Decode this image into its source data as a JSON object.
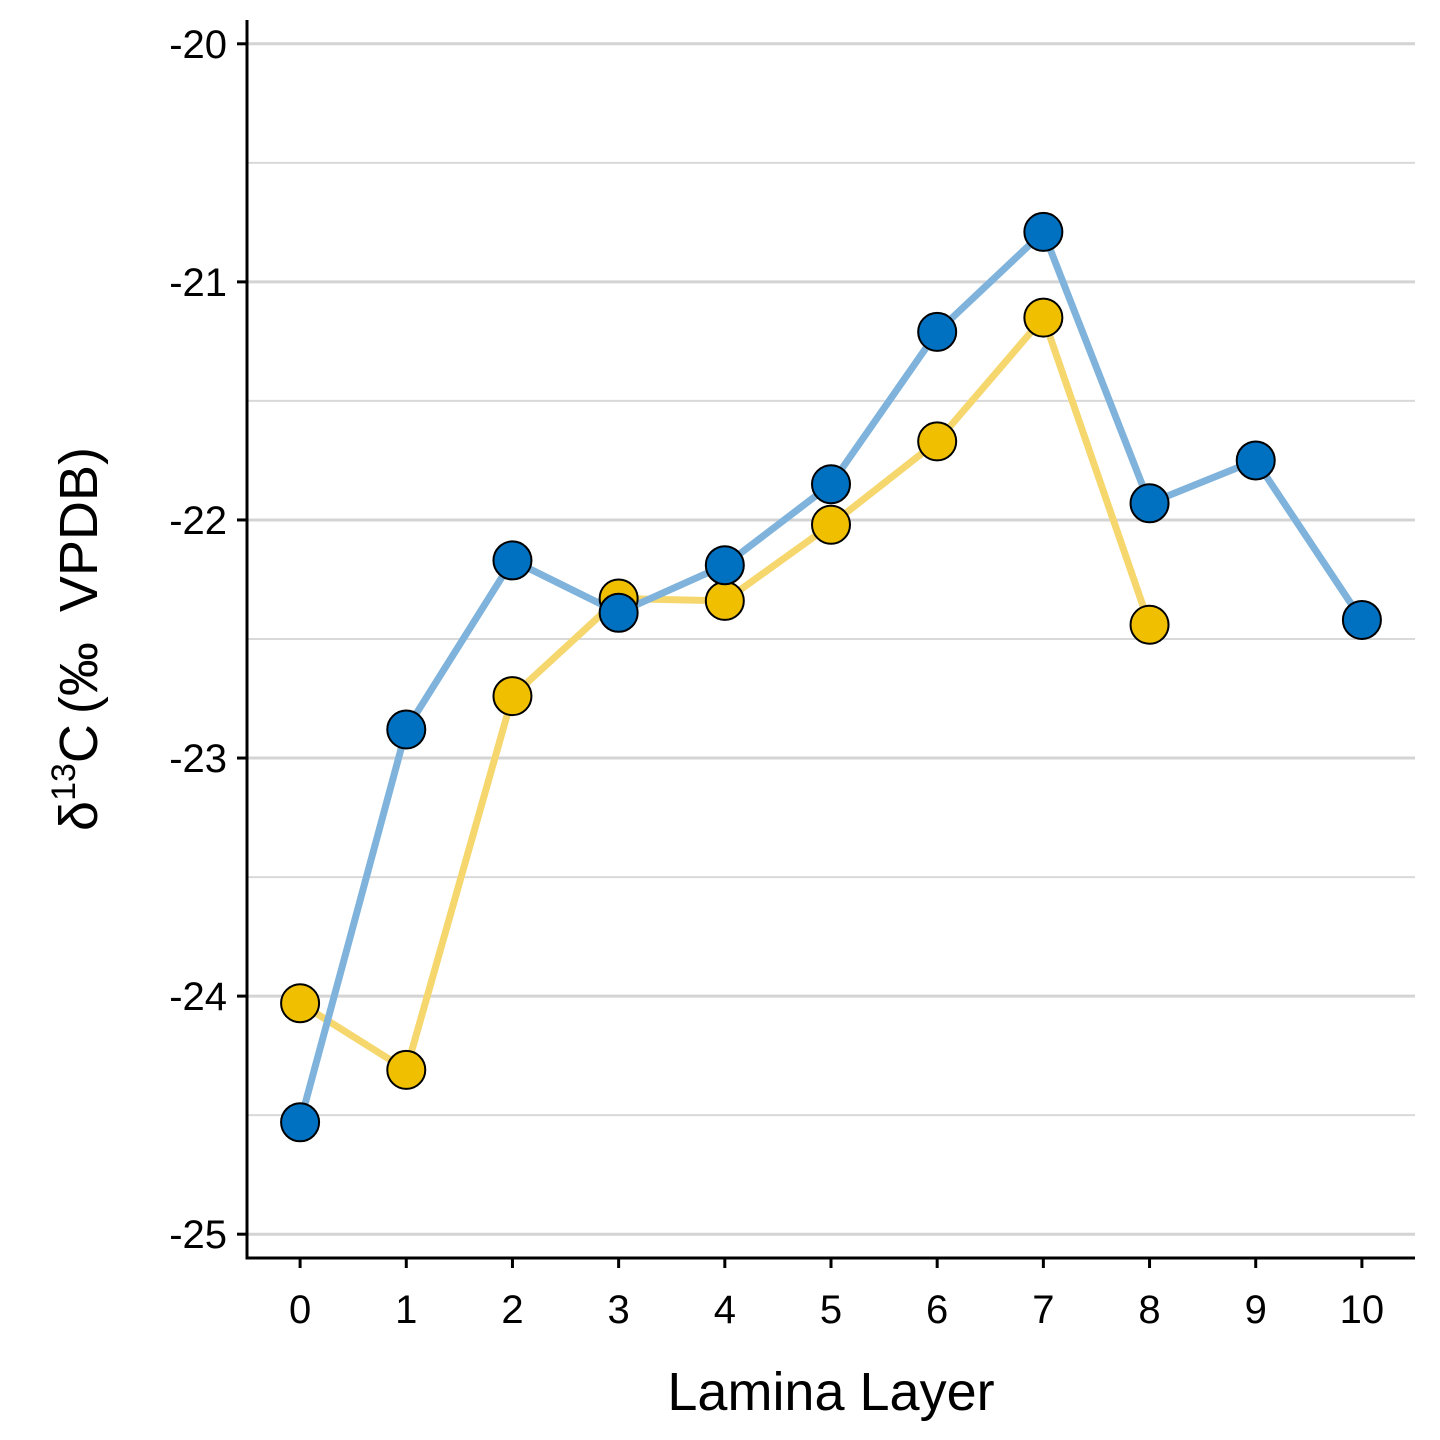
{
  "chart_data": {
    "type": "line",
    "xlabel": "Lamina Layer",
    "ylabel": {
      "prefix": "δ",
      "superscript": "13",
      "element": "C",
      "unit": "(‰  VPDB)"
    },
    "xlim": [
      -0.5,
      10.5
    ],
    "ylim": [
      -25.1,
      -19.9
    ],
    "x_ticks": [
      0,
      1,
      2,
      3,
      4,
      5,
      6,
      7,
      8,
      9,
      10
    ],
    "y_ticks": [
      -20,
      -21,
      -22,
      -23,
      -24,
      -25
    ],
    "y_tick_labels": [
      "-20",
      "-21",
      "-22",
      "-23",
      "-24",
      "-25"
    ],
    "y_minor_gridlines": [
      -20.5,
      -21.5,
      -22.5,
      -23.5,
      -24.5
    ],
    "grid": "horizontal",
    "legend": "none",
    "series": [
      {
        "color": "#f0c000",
        "line_color": "#f5d76e",
        "x": [
          0,
          1,
          2,
          3,
          4,
          5,
          6,
          7,
          8
        ],
        "values": [
          -24.03,
          -24.31,
          -22.74,
          -22.33,
          -22.34,
          -22.02,
          -21.67,
          -21.15,
          -22.44
        ]
      },
      {
        "color": "#0070c0",
        "line_color": "#7fb3dc",
        "x": [
          0,
          1,
          2,
          3,
          4,
          5,
          6,
          7,
          8,
          9,
          10
        ],
        "values": [
          -24.53,
          -22.88,
          -22.17,
          -22.39,
          -22.19,
          -21.85,
          -21.21,
          -20.79,
          -21.93,
          -21.75,
          -22.42
        ]
      }
    ]
  }
}
